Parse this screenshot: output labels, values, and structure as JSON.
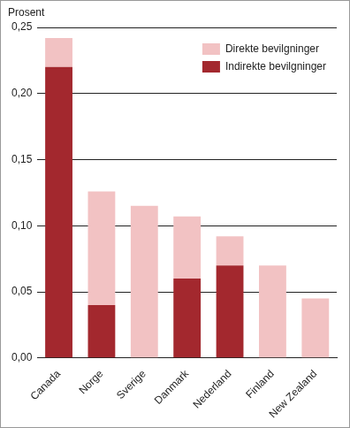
{
  "chart_data": {
    "type": "bar",
    "y_label": "Prosent",
    "categories": [
      "Canada",
      "Norge",
      "Sverige",
      "Danmark",
      "Nederland",
      "Finland",
      "New Zealand"
    ],
    "series": [
      {
        "name": "Direkte bevilgninger",
        "color": "#f2c2c3",
        "values": [
          0.022,
          0.086,
          0.115,
          0.047,
          0.022,
          0.07,
          0.045
        ]
      },
      {
        "name": "Indirekte bevilgninger",
        "color": "#a3282e",
        "values": [
          0.22,
          0.04,
          0,
          0.06,
          0.07,
          0,
          0
        ]
      }
    ],
    "stacked": true,
    "ylim": [
      0,
      0.25
    ],
    "yticks": [
      {
        "value": 0,
        "label": "0,00"
      },
      {
        "value": 0.05,
        "label": "0,05"
      },
      {
        "value": 0.1,
        "label": "0,10"
      },
      {
        "value": 0.15,
        "label": "0,15"
      },
      {
        "value": 0.2,
        "label": "0,20"
      },
      {
        "value": 0.25,
        "label": "0,25"
      }
    ],
    "grid": true,
    "legend": "upper right"
  }
}
